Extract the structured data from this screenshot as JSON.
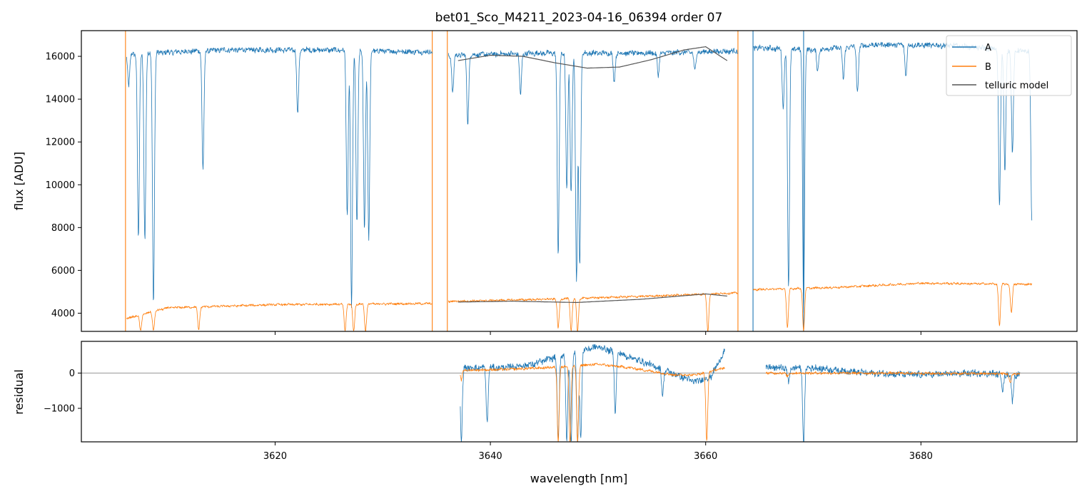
{
  "chart_data": [
    {
      "type": "line",
      "panel": "top",
      "title": "bet01_Sco_M4211_2023-04-16_06394  order 07",
      "xlabel": "",
      "ylabel": "flux [ADU]",
      "xlim": [
        3602,
        3694.5
      ],
      "ylim": [
        3150,
        17200
      ],
      "y_ticks": [
        4000,
        6000,
        8000,
        10000,
        12000,
        14000,
        16000
      ],
      "y_tick_labels": [
        "4000",
        "6000",
        "8000",
        "10000",
        "12000",
        "14000",
        "16000"
      ],
      "legend": {
        "position": "top-right",
        "entries": [
          {
            "label": "A",
            "color": "#1f77b4"
          },
          {
            "label": "B",
            "color": "#ff7f0e"
          },
          {
            "label": "telluric model",
            "color": "#555555"
          }
        ]
      },
      "series": [
        {
          "name": "A",
          "color": "#1f77b4",
          "segments": [
            {
              "x0": 3606.2,
              "x1": 3634.6,
              "continuum": [
                [
                  3606.2,
                  16100
                ],
                [
                  3615,
                  16300
                ],
                [
                  3625,
                  16300
                ],
                [
                  3634.6,
                  16200
                ]
              ],
              "lines": [
                [
                  3606.4,
                  14600
                ],
                [
                  3607.3,
                  7600
                ],
                [
                  3607.9,
                  7500
                ],
                [
                  3608.7,
                  4400
                ],
                [
                  3613.3,
                  10700
                ],
                [
                  3622.1,
                  13300
                ],
                [
                  3626.7,
                  8500
                ],
                [
                  3627.1,
                  4300
                ],
                [
                  3627.6,
                  8200
                ],
                [
                  3628.3,
                  8000
                ],
                [
                  3628.7,
                  7500
                ]
              ]
            },
            {
              "x0": 3636.1,
              "x1": 3663.0,
              "continuum": [
                [
                  3636.1,
                  16050
                ],
                [
                  3645,
                  16150
                ],
                [
                  3655,
                  16150
                ],
                [
                  3663.0,
                  16250
                ]
              ],
              "lines": [
                [
                  3636.5,
                  14300
                ],
                [
                  3637.9,
                  12900
                ],
                [
                  3642.8,
                  14200
                ],
                [
                  3646.3,
                  6700
                ],
                [
                  3647.1,
                  9700
                ],
                [
                  3647.5,
                  9600
                ],
                [
                  3648.0,
                  5600
                ],
                [
                  3648.3,
                  6200
                ],
                [
                  3651.5,
                  14800
                ],
                [
                  3655.6,
                  15100
                ],
                [
                  3659.0,
                  15300
                ]
              ]
            },
            {
              "x0": 3664.4,
              "x1": 3690.3,
              "continuum": [
                [
                  3664.4,
                  16400
                ],
                [
                  3670,
                  16300
                ],
                [
                  3676,
                  16550
                ],
                [
                  3683,
                  16500
                ],
                [
                  3690.3,
                  16200
                ]
              ],
              "lines": [
                [
                  3667.2,
                  13600
                ],
                [
                  3667.7,
                  5200
                ],
                [
                  3669.1,
                  4100
                ],
                [
                  3670.4,
                  15300
                ],
                [
                  3672.8,
                  14900
                ],
                [
                  3674.1,
                  14300
                ],
                [
                  3678.6,
                  15100
                ],
                [
                  3687.3,
                  9000
                ],
                [
                  3687.8,
                  10600
                ],
                [
                  3688.5,
                  11500
                ],
                [
                  3690.3,
                  8400
                ]
              ]
            }
          ]
        },
        {
          "name": "B",
          "color": "#ff7f0e",
          "segments": [
            {
              "x0": 3606.2,
              "x1": 3634.6,
              "continuum": [
                [
                  3606.2,
                  3750
                ],
                [
                  3610,
                  4250
                ],
                [
                  3620,
                  4400
                ],
                [
                  3634.6,
                  4450
                ]
              ],
              "lines": [
                [
                  3607.5,
                  3150
                ],
                [
                  3608.7,
                  3200
                ],
                [
                  3612.9,
                  3200
                ],
                [
                  3626.5,
                  3150
                ],
                [
                  3627.3,
                  3150
                ],
                [
                  3628.4,
                  3150
                ]
              ]
            },
            {
              "x0": 3636.1,
              "x1": 3663.0,
              "continuum": [
                [
                  3636.1,
                  4550
                ],
                [
                  3645,
                  4650
                ],
                [
                  3655,
                  4800
                ],
                [
                  3663.0,
                  4950
                ]
              ],
              "lines": [
                [
                  3646.3,
                  3300
                ],
                [
                  3647.5,
                  3150
                ],
                [
                  3648.1,
                  3150
                ],
                [
                  3660.2,
                  3150
                ]
              ]
            },
            {
              "x0": 3664.4,
              "x1": 3690.3,
              "continuum": [
                [
                  3664.4,
                  5100
                ],
                [
                  3672,
                  5200
                ],
                [
                  3680,
                  5400
                ],
                [
                  3690.3,
                  5350
                ]
              ],
              "lines": [
                [
                  3667.6,
                  3300
                ],
                [
                  3669.1,
                  3200
                ],
                [
                  3687.3,
                  3400
                ],
                [
                  3688.4,
                  4000
                ]
              ]
            }
          ]
        },
        {
          "name": "telluric model",
          "color": "#555555",
          "segments": [
            {
              "points": [
                [
                  3637,
                  15800
                ],
                [
                  3640,
                  16050
                ],
                [
                  3643,
                  16000
                ],
                [
                  3646,
                  15700
                ],
                [
                  3649,
                  15450
                ],
                [
                  3652,
                  15500
                ],
                [
                  3655,
                  15850
                ],
                [
                  3658,
                  16300
                ],
                [
                  3660,
                  16450
                ],
                [
                  3662,
                  15800
                ]
              ]
            },
            {
              "points": [
                [
                  3637,
                  4520
                ],
                [
                  3642,
                  4560
                ],
                [
                  3648,
                  4500
                ],
                [
                  3654,
                  4650
                ],
                [
                  3660,
                  4900
                ],
                [
                  3662,
                  4800
                ]
              ]
            }
          ]
        }
      ],
      "vertical_lines": [
        {
          "x": 3606.1,
          "color": "#ff7f0e"
        },
        {
          "x": 3634.6,
          "color": "#ff7f0e"
        },
        {
          "x": 3636.0,
          "color": "#ff7f0e"
        },
        {
          "x": 3663.0,
          "color": "#ff7f0e"
        },
        {
          "x": 3664.4,
          "color": "#1f77b4"
        },
        {
          "x": 3669.1,
          "color": "#1f77b4"
        }
      ]
    },
    {
      "type": "line",
      "panel": "bottom",
      "title": "",
      "xlabel": "wavelength [nm]",
      "ylabel": "residual",
      "xlim": [
        3602,
        3694.5
      ],
      "ylim": [
        -1950,
        900
      ],
      "x_ticks": [
        3620,
        3640,
        3660,
        3680
      ],
      "x_tick_labels": [
        "3620",
        "3640",
        "3660",
        "3680"
      ],
      "y_ticks": [
        -1000,
        0
      ],
      "y_tick_labels": [
        "−1000",
        "0"
      ],
      "zero_line": true,
      "series": [
        {
          "name": "A",
          "color": "#1f77b4",
          "segments": [
            {
              "x0": 3637.2,
              "x1": 3661.8,
              "continuum": [
                [
                  3637.2,
                  150
                ],
                [
                  3641,
                  150
                ],
                [
                  3644,
                  250
                ],
                [
                  3647,
                  550
                ],
                [
                  3650,
                  750
                ],
                [
                  3653,
                  450
                ],
                [
                  3656,
                  100
                ],
                [
                  3659,
                  -250
                ],
                [
                  3660.5,
                  -100
                ],
                [
                  3661.8,
                  650
                ]
              ],
              "lines": [
                [
                  3637.3,
                  -1950
                ],
                [
                  3639.7,
                  -1400
                ],
                [
                  3646.3,
                  -1950
                ],
                [
                  3647.1,
                  -1950
                ],
                [
                  3647.5,
                  -1950
                ],
                [
                  3648.1,
                  -1950
                ],
                [
                  3648.4,
                  -1800
                ],
                [
                  3651.6,
                  -1100
                ],
                [
                  3656.0,
                  -600
                ]
              ]
            },
            {
              "x0": 3665.6,
              "x1": 3689.2,
              "continuum": [
                [
                  3665.6,
                  150
                ],
                [
                  3670,
                  150
                ],
                [
                  3675,
                  0
                ],
                [
                  3680,
                  -50
                ],
                [
                  3685,
                  0
                ],
                [
                  3689.2,
                  -50
                ]
              ],
              "lines": [
                [
                  3667.7,
                  -300
                ],
                [
                  3669.1,
                  -1950
                ],
                [
                  3687.6,
                  -500
                ],
                [
                  3688.5,
                  -800
                ]
              ]
            }
          ]
        },
        {
          "name": "B",
          "color": "#ff7f0e",
          "segments": [
            {
              "x0": 3637.2,
              "x1": 3661.8,
              "continuum": [
                [
                  3637.2,
                  80
                ],
                [
                  3641,
                  100
                ],
                [
                  3645,
                  150
                ],
                [
                  3650,
                  250
                ],
                [
                  3653,
                  150
                ],
                [
                  3657,
                  -50
                ],
                [
                  3659,
                  -50
                ],
                [
                  3661.8,
                  150
                ]
              ],
              "lines": [
                [
                  3637.3,
                  -200
                ],
                [
                  3646.3,
                  -1950
                ],
                [
                  3647.4,
                  -1950
                ],
                [
                  3648.1,
                  -1950
                ],
                [
                  3660.1,
                  -1950
                ]
              ]
            },
            {
              "x0": 3665.6,
              "x1": 3689.2,
              "continuum": [
                [
                  3665.6,
                  0
                ],
                [
                  3675,
                  0
                ],
                [
                  3689.2,
                  -20
                ]
              ],
              "lines": [
                [
                  3667.6,
                  -100
                ],
                [
                  3688.3,
                  -300
                ]
              ]
            }
          ]
        }
      ]
    }
  ]
}
